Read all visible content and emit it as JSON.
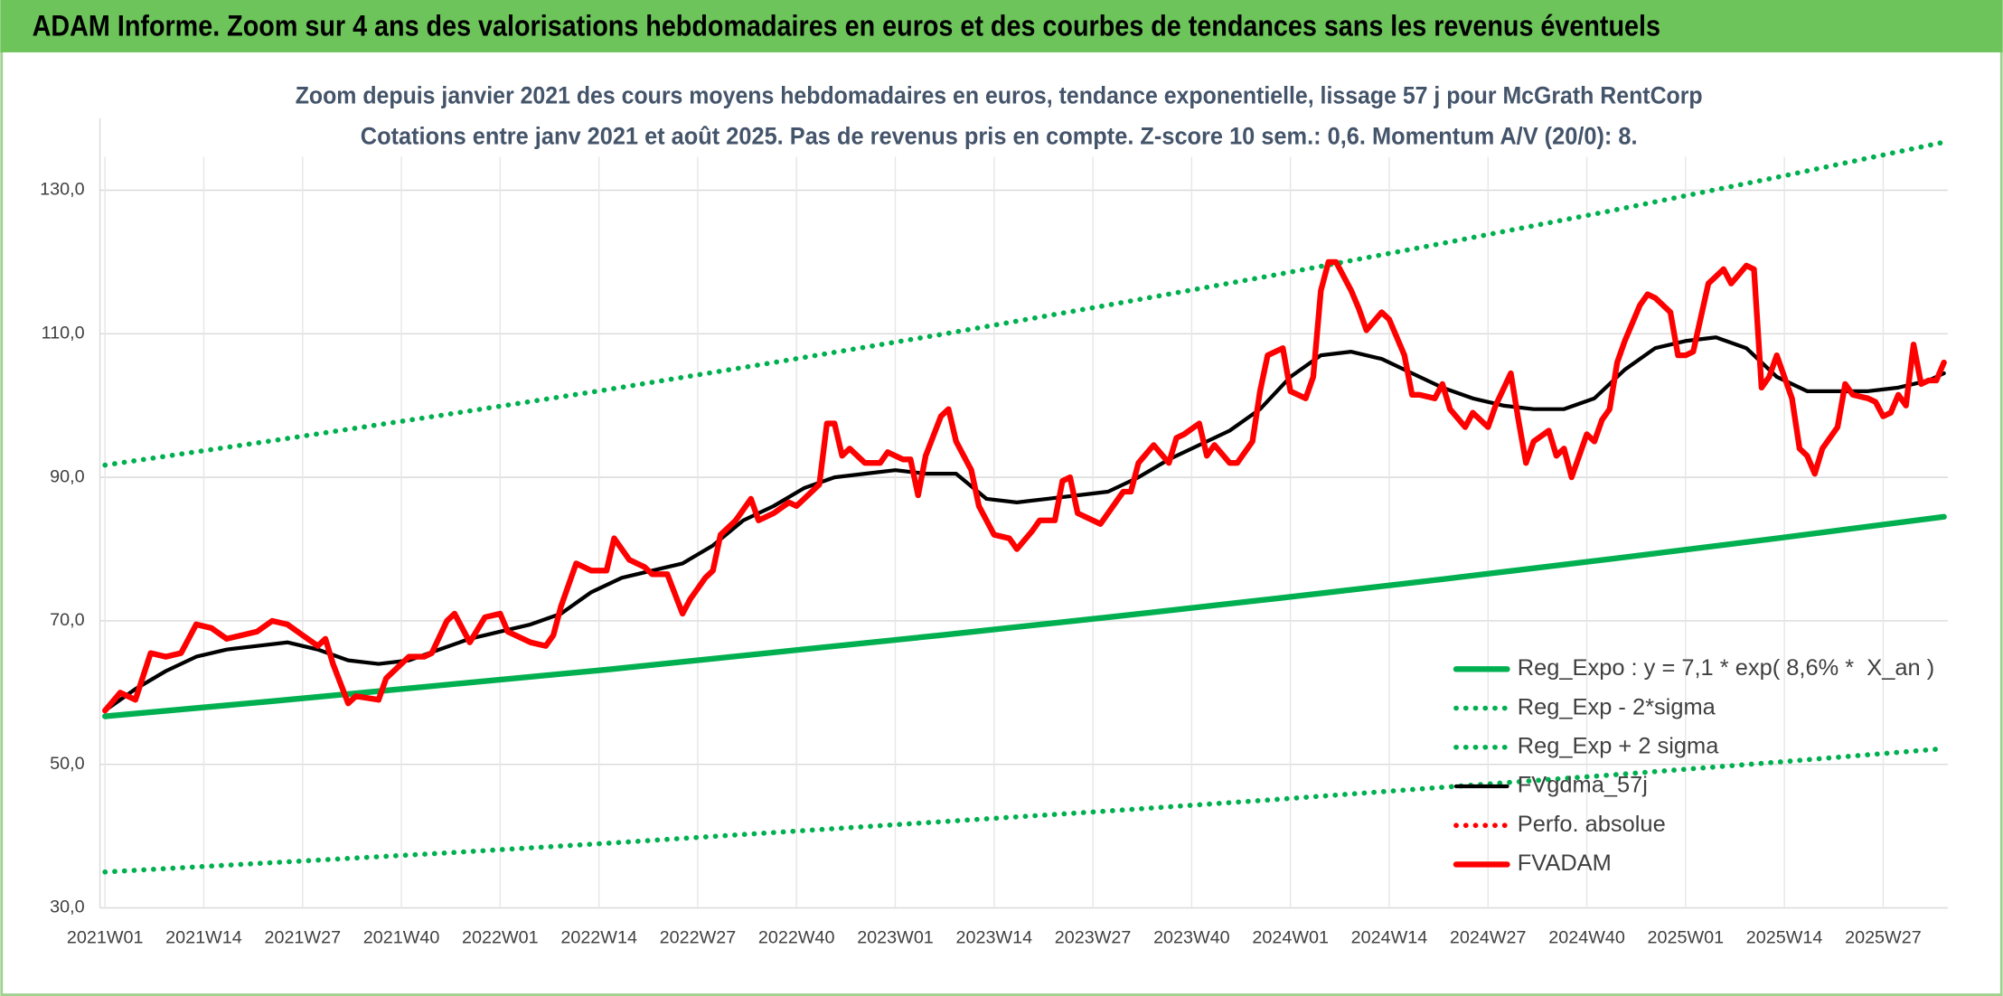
{
  "header": {
    "title": "ADAM Informe. Zoom sur 4 ans des valorisations hebdomadaires en euros et des courbes de tendances sans les revenus éventuels"
  },
  "chart_data": {
    "type": "line",
    "title": "Zoom depuis janvier 2021 des cours moyens hebdomadaires en euros, tendance exponentielle, lissage 57 j pour McGrath RentCorp",
    "subtitle": "Cotations entre janv 2021 et août 2025. Pas de revenus pris en compte. Z-score 10 sem.: 0,6. Momentum A/V (20/0): 8.",
    "xlim": [
      0,
      242
    ],
    "xticks": [
      {
        "value": 0,
        "label": "2021W01"
      },
      {
        "value": 13,
        "label": "2021W14"
      },
      {
        "value": 26,
        "label": "2021W27"
      },
      {
        "value": 39,
        "label": "2021W40"
      },
      {
        "value": 52,
        "label": "2022W01"
      },
      {
        "value": 65,
        "label": "2022W14"
      },
      {
        "value": 78,
        "label": "2022W27"
      },
      {
        "value": 91,
        "label": "2022W40"
      },
      {
        "value": 104,
        "label": "2023W01"
      },
      {
        "value": 117,
        "label": "2023W14"
      },
      {
        "value": 130,
        "label": "2023W27"
      },
      {
        "value": 143,
        "label": "2023W40"
      },
      {
        "value": 156,
        "label": "2024W01"
      },
      {
        "value": 169,
        "label": "2024W14"
      },
      {
        "value": 182,
        "label": "2024W27"
      },
      {
        "value": 195,
        "label": "2024W40"
      },
      {
        "value": 208,
        "label": "2025W01"
      },
      {
        "value": 221,
        "label": "2025W14"
      },
      {
        "value": 234,
        "label": "2025W27"
      }
    ],
    "ylim": [
      30,
      140
    ],
    "yticks": [
      {
        "value": 30,
        "label": "30,0"
      },
      {
        "value": 50,
        "label": "50,0"
      },
      {
        "value": 70,
        "label": "70,0"
      },
      {
        "value": 90,
        "label": "90,0"
      },
      {
        "value": 110,
        "label": "110,0"
      },
      {
        "value": 130,
        "label": "130,0"
      }
    ],
    "grid": true,
    "legend": "bottom-right",
    "series": [
      {
        "name": "Reg_Expo : y = 7,1 * exp( 8,6% *  X_an )",
        "color": "#00b050",
        "dash": "solid",
        "x": [
          0,
          22,
          44,
          66,
          88,
          110,
          132,
          154,
          176,
          198,
          220,
          242
        ],
        "values": [
          56.7,
          58.8,
          61.0,
          63.2,
          65.6,
          68.0,
          70.5,
          73.1,
          75.8,
          78.6,
          81.5,
          84.5
        ]
      },
      {
        "name": "Reg_Exp - 2*sigma",
        "color": "#00b050",
        "dash": "dotted",
        "x": [
          0,
          22,
          44,
          66,
          88,
          110,
          132,
          154,
          176,
          198,
          220,
          242
        ],
        "values": [
          35.0,
          36.3,
          37.6,
          39.0,
          40.5,
          42.0,
          43.5,
          45.1,
          46.8,
          48.5,
          50.3,
          52.2
        ]
      },
      {
        "name": "Reg_Exp + 2 sigma",
        "color": "#00b050",
        "dash": "dotted",
        "x": [
          0,
          22,
          44,
          66,
          88,
          110,
          132,
          154,
          176,
          198,
          220,
          242
        ],
        "values": [
          91.7,
          95.1,
          98.6,
          102.2,
          106.0,
          109.9,
          114.0,
          118.2,
          122.6,
          127.1,
          131.8,
          136.7
        ]
      },
      {
        "name": "FVgdma_57j",
        "color": "#000000",
        "dash": "solid",
        "x": [
          0,
          4,
          8,
          12,
          16,
          20,
          24,
          28,
          32,
          36,
          40,
          44,
          48,
          52,
          56,
          60,
          64,
          68,
          72,
          76,
          80,
          84,
          88,
          92,
          96,
          100,
          104,
          108,
          112,
          116,
          120,
          124,
          128,
          132,
          136,
          140,
          144,
          148,
          152,
          156,
          160,
          164,
          168,
          172,
          176,
          180,
          184,
          188,
          192,
          196,
          200,
          204,
          208,
          212,
          216,
          220,
          224,
          228,
          232,
          236,
          240,
          242
        ],
        "values": [
          57.5,
          60.5,
          63,
          65,
          66,
          66.5,
          67,
          66,
          64.5,
          64,
          64.5,
          66,
          67.5,
          68.5,
          69.5,
          71,
          74,
          76,
          77,
          78,
          80.5,
          84,
          86,
          88.5,
          90,
          90.5,
          91,
          90.5,
          90.5,
          87,
          86.5,
          87,
          87.5,
          88,
          90,
          92.5,
          94.5,
          96.5,
          99.5,
          104,
          107,
          107.5,
          106.5,
          104.5,
          102.5,
          101,
          100,
          99.5,
          99.5,
          101,
          105,
          108,
          109,
          109.5,
          108,
          104,
          102,
          102,
          102,
          102.5,
          103.5,
          104.5
        ]
      },
      {
        "name": "Perfo. absolue",
        "color": "#ff0000",
        "dash": "dotted",
        "x": [],
        "values": []
      },
      {
        "name": "FVADAM",
        "color": "#ff0000",
        "dash": "solid",
        "x": [
          0,
          2,
          4,
          6,
          8,
          10,
          12,
          14,
          16,
          18,
          20,
          22,
          24,
          26,
          28,
          29,
          30,
          32,
          33,
          36,
          37,
          40,
          42,
          43,
          45,
          46,
          47,
          48,
          50,
          52,
          53,
          56,
          58,
          59,
          60,
          62,
          64,
          66,
          67,
          69,
          71,
          72,
          74,
          76,
          77,
          79,
          80,
          81,
          83,
          85,
          86,
          88,
          90,
          91,
          92,
          94,
          95,
          96,
          97,
          98,
          100,
          102,
          103,
          105,
          106,
          107,
          108,
          110,
          111,
          112,
          114,
          115,
          116,
          117,
          119,
          120,
          122,
          123,
          125,
          126,
          127,
          128,
          130,
          131,
          132,
          134,
          135,
          136,
          138,
          140,
          141,
          142,
          144,
          145,
          146,
          148,
          149,
          151,
          152,
          153,
          155,
          156,
          158,
          159,
          160,
          161,
          162,
          164,
          165,
          166,
          168,
          169,
          171,
          172,
          173,
          175,
          176,
          177,
          179,
          180,
          182,
          183,
          185,
          186,
          187,
          188,
          190,
          191,
          192,
          193,
          195,
          196,
          197,
          198,
          199,
          200,
          202,
          203,
          204,
          206,
          207,
          208,
          209,
          211,
          212,
          213,
          214,
          216,
          217,
          218,
          219,
          220,
          222,
          223,
          224,
          225,
          226,
          228,
          229,
          230,
          232,
          233,
          234,
          235,
          236,
          237,
          238,
          239,
          240,
          241,
          242
        ],
        "values": [
          57.5,
          60,
          59,
          65.5,
          65,
          65.5,
          69.5,
          69,
          67.5,
          68,
          68.5,
          70,
          69.5,
          68,
          66.5,
          67.5,
          64,
          58.5,
          59.5,
          59,
          62,
          65,
          65,
          65.5,
          70,
          71,
          69,
          67,
          70.5,
          71,
          68.5,
          67,
          66.5,
          68,
          72,
          78,
          77,
          77,
          81.5,
          78.5,
          77.5,
          76.5,
          76.5,
          71,
          73,
          76,
          77,
          82,
          84,
          87,
          84,
          85,
          86.5,
          86,
          87,
          89,
          97.5,
          97.5,
          93,
          94,
          92,
          92,
          93.5,
          92.5,
          92.5,
          87.5,
          93,
          98.5,
          99.5,
          95,
          91,
          86,
          84,
          82,
          81.5,
          80,
          82.5,
          84,
          84,
          89.5,
          90,
          85,
          84,
          83.5,
          85,
          88,
          88,
          92,
          94.5,
          92,
          95.5,
          96,
          97.5,
          93,
          94.5,
          92,
          92,
          95,
          102,
          107,
          108,
          102,
          101,
          104,
          116,
          120,
          120,
          116,
          113.5,
          110.5,
          113,
          112,
          107,
          101.5,
          101.5,
          101,
          103,
          99.5,
          97,
          99,
          97,
          100,
          104.5,
          98,
          92,
          95,
          96.5,
          93,
          94,
          90,
          96,
          95,
          98,
          99.5,
          106,
          109,
          114,
          115.5,
          115,
          113,
          107,
          107,
          107.5,
          117,
          118,
          119,
          117,
          119.5,
          119,
          102.5,
          104,
          107,
          101,
          94,
          93,
          90.5,
          94,
          97,
          103,
          101.5,
          101,
          100.5,
          98.5,
          99,
          101.5,
          100,
          108.5,
          103,
          103.5,
          103.5,
          106
        ]
      }
    ]
  }
}
